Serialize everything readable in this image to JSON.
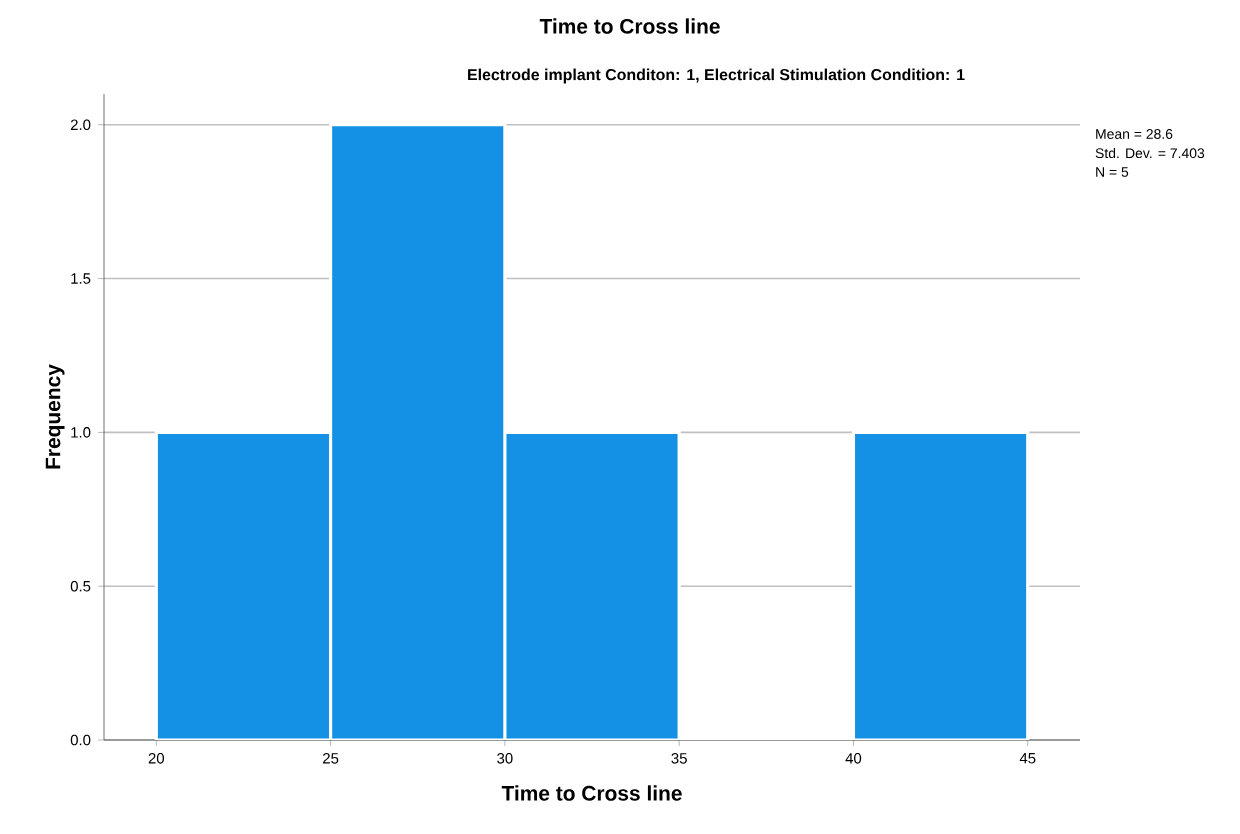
{
  "chart_data": {
    "type": "histogram",
    "title": "Time to Cross line",
    "subtitle": "Electrode implant Conditon: 1, Electrical Stimulation Condition: 1",
    "xlabel": "Time to Cross line",
    "ylabel": "Frequency",
    "bins": [
      20,
      25,
      30,
      35,
      40,
      45
    ],
    "values": [
      1,
      2,
      1,
      0,
      1
    ],
    "color": "#1490e4",
    "xlim": [
      18.5,
      46.5
    ],
    "xticks": [
      20,
      25,
      30,
      35,
      40,
      45
    ],
    "ylim": [
      0,
      2.1
    ],
    "yticks": [
      {
        "value": 0,
        "label": "0.0"
      },
      {
        "value": 0.5,
        "label": "0.5"
      },
      {
        "value": 1,
        "label": "1.0"
      },
      {
        "value": 1.5,
        "label": "1.5"
      },
      {
        "value": 2,
        "label": "2.0"
      }
    ],
    "grid": "y",
    "annotations": [
      "Mean = 28.6",
      "Std. Dev. = 7.403",
      "N = 5"
    ]
  }
}
